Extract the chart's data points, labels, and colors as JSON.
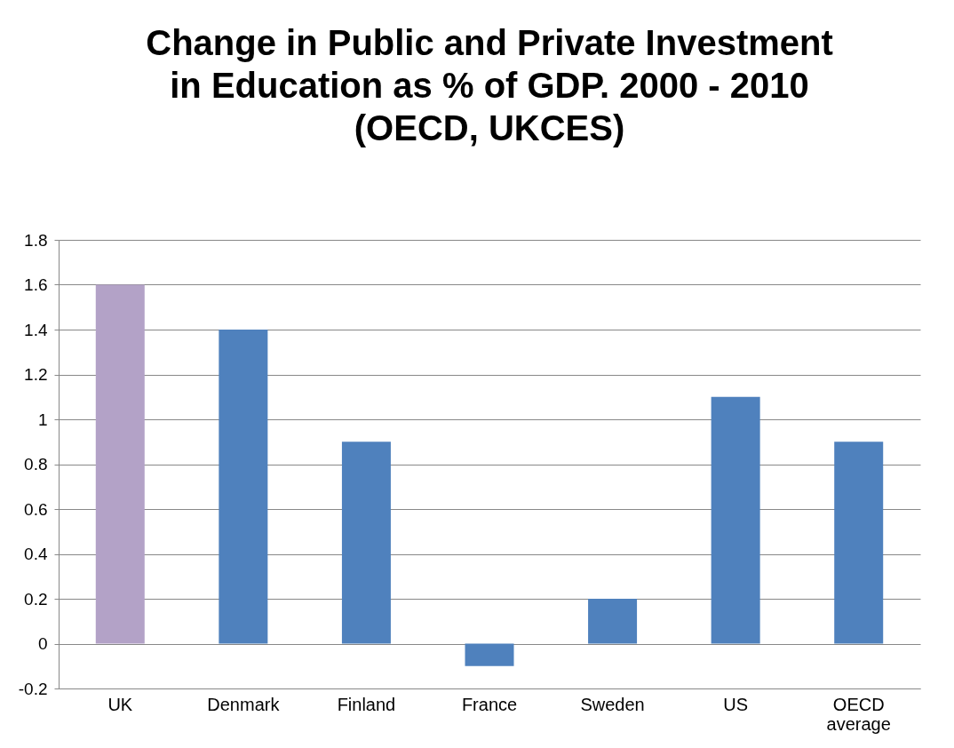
{
  "chart_data": {
    "type": "bar",
    "title": "Change in Public and Private Investment in Education as % of GDP. 2000 - 2010 (OECD, UKCES)",
    "categories": [
      "UK",
      "Denmark",
      "Finland",
      "France",
      "Sweden",
      "US",
      "OECD average"
    ],
    "values": [
      1.6,
      1.4,
      0.9,
      -0.1,
      0.2,
      1.1,
      0.9
    ],
    "colors": [
      "#b3a2c7",
      "#4f81bd",
      "#4f81bd",
      "#4f81bd",
      "#4f81bd",
      "#4f81bd",
      "#4f81bd"
    ],
    "ylim": [
      -0.2,
      1.8
    ],
    "yticks": [
      -0.2,
      0,
      0.2,
      0.4,
      0.6,
      0.8,
      1,
      1.2,
      1.4,
      1.6,
      1.8
    ],
    "grid": "y"
  }
}
